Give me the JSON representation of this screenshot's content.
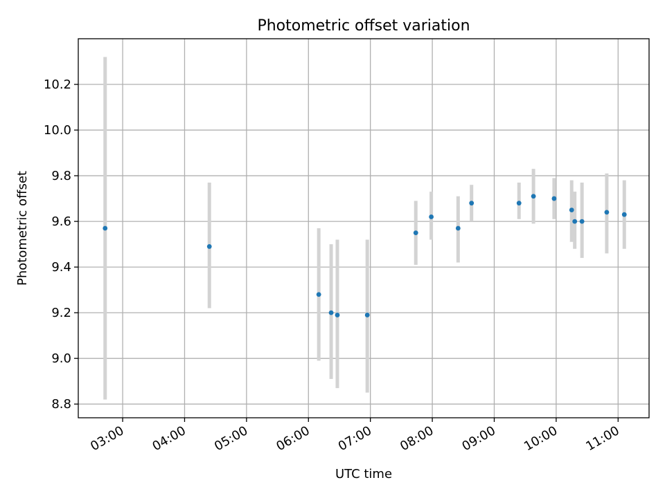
{
  "chart_data": {
    "type": "scatter",
    "title": "Photometric offset variation",
    "xlabel": "UTC time",
    "ylabel": "Photometric offset",
    "x_format": "HH:MM",
    "xlim": [
      "02:17",
      "11:30"
    ],
    "ylim": [
      8.74,
      10.4
    ],
    "x_ticks": [
      "03:00",
      "04:00",
      "05:00",
      "06:00",
      "07:00",
      "08:00",
      "09:00",
      "10:00",
      "11:00"
    ],
    "y_ticks": [
      8.8,
      9.0,
      9.2,
      9.4,
      9.6,
      9.8,
      10.0,
      10.2
    ],
    "grid": true,
    "colors": {
      "points": "#1f77b4",
      "error_bars": "#d3d3d3"
    },
    "points": [
      {
        "time": "02:43",
        "value": 9.57,
        "err_low": 8.82,
        "err_high": 10.32
      },
      {
        "time": "04:24",
        "value": 9.49,
        "err_low": 9.22,
        "err_high": 9.77
      },
      {
        "time": "06:10",
        "value": 9.28,
        "err_low": 8.99,
        "err_high": 9.57
      },
      {
        "time": "06:22",
        "value": 9.2,
        "err_low": 8.91,
        "err_high": 9.5
      },
      {
        "time": "06:28",
        "value": 9.19,
        "err_low": 8.87,
        "err_high": 9.52
      },
      {
        "time": "06:57",
        "value": 9.19,
        "err_low": 8.85,
        "err_high": 9.52
      },
      {
        "time": "07:44",
        "value": 9.55,
        "err_low": 9.41,
        "err_high": 9.69
      },
      {
        "time": "07:59",
        "value": 9.62,
        "err_low": 9.52,
        "err_high": 9.73
      },
      {
        "time": "08:25",
        "value": 9.57,
        "err_low": 9.42,
        "err_high": 9.71
      },
      {
        "time": "08:38",
        "value": 9.68,
        "err_low": 9.6,
        "err_high": 9.76
      },
      {
        "time": "09:24",
        "value": 9.68,
        "err_low": 9.61,
        "err_high": 9.77
      },
      {
        "time": "09:38",
        "value": 9.71,
        "err_low": 9.59,
        "err_high": 9.83
      },
      {
        "time": "09:58",
        "value": 9.7,
        "err_low": 9.61,
        "err_high": 9.79
      },
      {
        "time": "10:15",
        "value": 9.65,
        "err_low": 9.51,
        "err_high": 9.78
      },
      {
        "time": "10:18",
        "value": 9.6,
        "err_low": 9.48,
        "err_high": 9.73
      },
      {
        "time": "10:25",
        "value": 9.6,
        "err_low": 9.44,
        "err_high": 9.77
      },
      {
        "time": "10:49",
        "value": 9.64,
        "err_low": 9.46,
        "err_high": 9.81
      },
      {
        "time": "11:06",
        "value": 9.63,
        "err_low": 9.48,
        "err_high": 9.78
      }
    ]
  }
}
